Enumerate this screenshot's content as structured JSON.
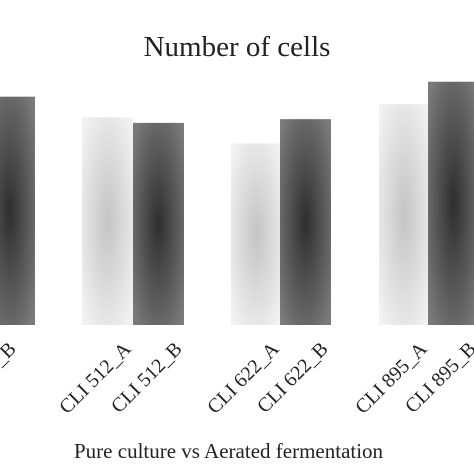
{
  "chart_data": {
    "type": "bar",
    "title": "Number of cells",
    "xlabel": "Pure culture vs Aerated fermentation",
    "ylabel": "",
    "grid": false,
    "legend": "none",
    "categories": [
      "…_B",
      "CLI 512_A",
      "CLI 512_B",
      "CLI 622_A",
      "CLI 622_B",
      "CLI 895_A",
      "CLI 895_B"
    ],
    "values": [
      1.22,
      1.11,
      1.08,
      0.97,
      1.1,
      1.18,
      1.3
    ],
    "series_style": [
      "dark",
      "light",
      "dark",
      "light",
      "dark",
      "light",
      "dark"
    ],
    "ylim": [
      0,
      1.4
    ],
    "colors": {
      "light_center": "#c4c4c4",
      "light_edge": "#f2f2f2",
      "dark_center": "#2e2e2e",
      "dark_edge": "#7a7a7a"
    }
  }
}
